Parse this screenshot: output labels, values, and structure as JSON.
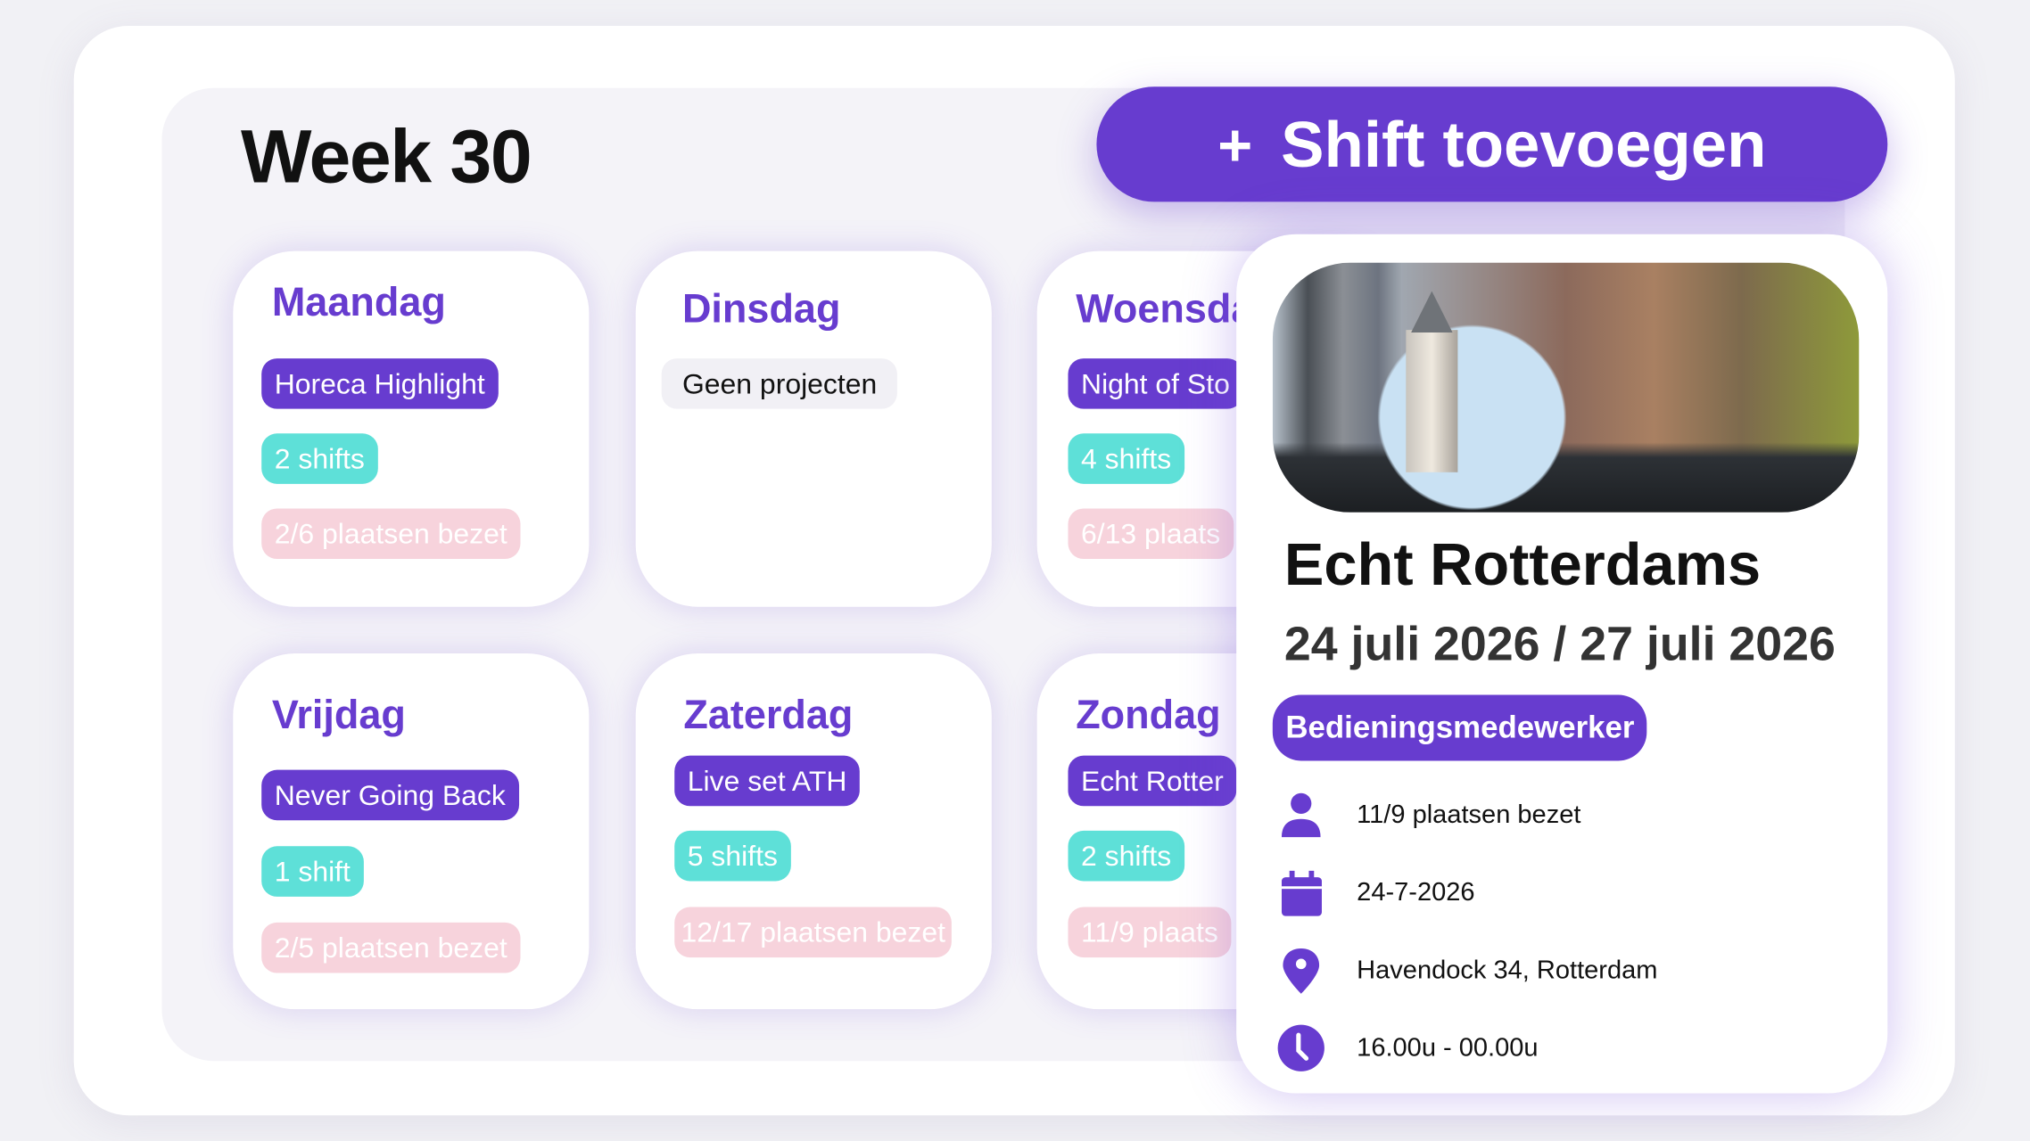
{
  "header": {
    "title": "Week 30",
    "add_button": {
      "icon": "plus-icon",
      "label": "Shift toevoegen"
    }
  },
  "colors": {
    "accent": "#673ccf",
    "shifts": "#5ee0d8",
    "seats": "#f7d3dc"
  },
  "days": [
    {
      "name": "Maandag",
      "project": "Horeca Highlight",
      "shifts": "2 shifts",
      "seats": "2/6 plaatsen bezet"
    },
    {
      "name": "Dinsdag",
      "project": "Geen projecten"
    },
    {
      "name": "Woensdag",
      "project": "Night of Sto",
      "shifts": "4 shifts",
      "seats": "6/13 plaats"
    },
    {
      "name": "Vrijdag",
      "project": "Never Going Back",
      "shifts": "1 shift",
      "seats": "2/5 plaatsen bezet"
    },
    {
      "name": "Zaterdag",
      "project": "Live set ATH",
      "shifts": "5 shifts",
      "seats": "12/17 plaatsen bezet"
    },
    {
      "name": "Zondag",
      "project": "Echt Rotter",
      "shifts": "2 shifts",
      "seats": "11/9 plaats"
    }
  ],
  "popup": {
    "title": "Echt Rotterdams",
    "dates": "24 juli 2026 / 27 juli 2026",
    "role": "Bedieningsmedewerker",
    "details": [
      {
        "icon": "person-icon",
        "text": "11/9 plaatsen bezet"
      },
      {
        "icon": "calendar-icon",
        "text": "24-7-2026"
      },
      {
        "icon": "location-pin-icon",
        "text": "Havendock 34, Rotterdam"
      },
      {
        "icon": "clock-icon",
        "text": "16.00u - 00.00u"
      }
    ]
  }
}
